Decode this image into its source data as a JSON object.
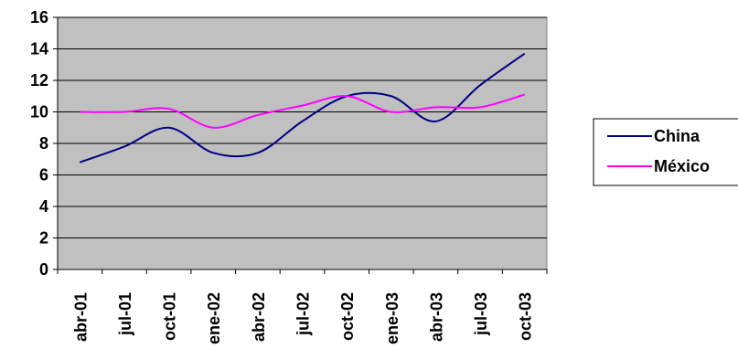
{
  "chart_data": {
    "type": "line",
    "title": "",
    "xlabel": "",
    "ylabel": "",
    "categories": [
      "abr-01",
      "jul-01",
      "oct-01",
      "ene-02",
      "abr-02",
      "jul-02",
      "oct-02",
      "ene-03",
      "abr-03",
      "jul-03",
      "oct-03"
    ],
    "ylim": [
      0,
      16
    ],
    "yticks": [
      "0",
      "2",
      "4",
      "6",
      "8",
      "10",
      "12",
      "14",
      "16"
    ],
    "grid": true,
    "plot_background": "#c0c0c0",
    "legend_position": "right",
    "series": [
      {
        "name": "China",
        "color": "#000080",
        "values": [
          6.8,
          7.8,
          9.0,
          7.4,
          7.4,
          9.4,
          11.0,
          11.0,
          9.4,
          11.7,
          13.7
        ]
      },
      {
        "name": "México",
        "color": "#ff00ff",
        "values": [
          10.0,
          10.0,
          10.2,
          9.0,
          9.8,
          10.4,
          11.0,
          10.0,
          10.3,
          10.3,
          11.1
        ]
      }
    ]
  }
}
